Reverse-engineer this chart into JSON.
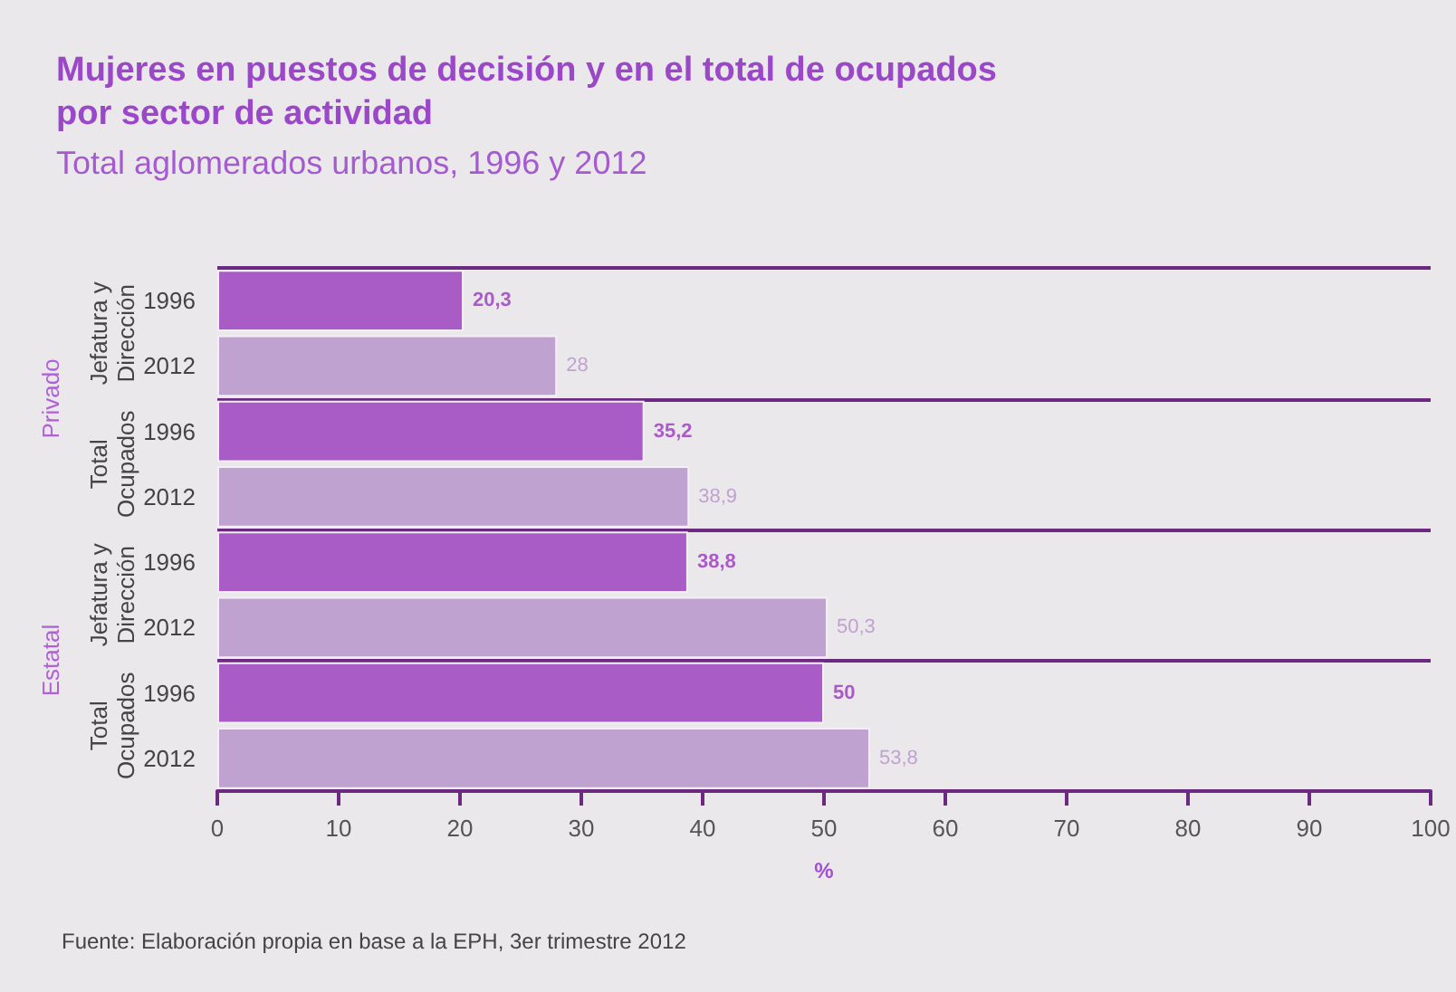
{
  "chart_data": {
    "type": "bar",
    "orientation": "horizontal",
    "title": "Mujeres en puestos de decisión y en el total de ocupados por sector de actividad",
    "subtitle": "Total aglomerados urbanos, 1996 y 2012",
    "xlabel": "%",
    "categories": [
      "1996",
      "2012",
      "1996",
      "2012",
      "1996",
      "2012",
      "1996",
      "2012"
    ],
    "values": [
      20.3,
      28,
      35.2,
      38.9,
      38.8,
      50.3,
      50,
      53.8
    ],
    "colors": [
      "#a95bc6",
      "#bfa2cf",
      "#a95bc6",
      "#bfa2cf",
      "#a95bc6",
      "#bfa2cf",
      "#a95bc6",
      "#bfa2cf"
    ],
    "value_labels": [
      "20,3",
      "28",
      "35,2",
      "38,9",
      "38,8",
      "50,3",
      "50",
      "53,8"
    ],
    "xlim": [
      0,
      100
    ],
    "xticks": [
      0,
      10,
      20,
      30,
      40,
      50,
      60,
      70,
      80,
      90,
      100
    ],
    "annotations": [
      "Jefatura y\nDirección",
      "Total\nOcupados",
      "Jefatura y\nDirección",
      "Total\nOcupados",
      "Privado",
      "Estatal",
      "Fuente: Elaboración propia en base a la EPH, 3er trimestre 2012"
    ]
  }
}
